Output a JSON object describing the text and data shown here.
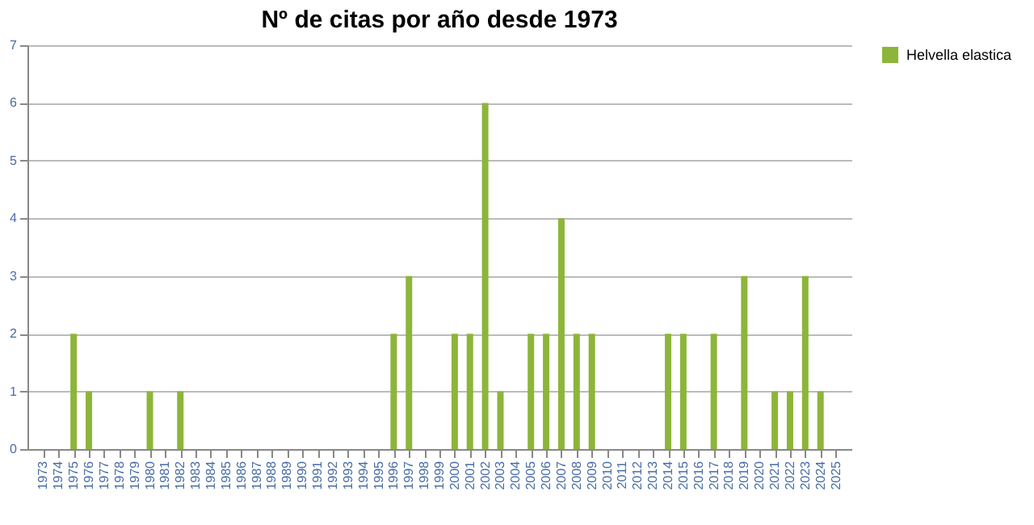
{
  "chart_data": {
    "type": "bar",
    "title": "Nº de citas por año desde 1973",
    "categories": [
      "1973",
      "1974",
      "1975",
      "1976",
      "1977",
      "1978",
      "1979",
      "1980",
      "1981",
      "1982",
      "1983",
      "1984",
      "1985",
      "1986",
      "1987",
      "1988",
      "1989",
      "1990",
      "1991",
      "1992",
      "1993",
      "1994",
      "1995",
      "1996",
      "1997",
      "1998",
      "1999",
      "2000",
      "2001",
      "2002",
      "2003",
      "2004",
      "2005",
      "2006",
      "2007",
      "2008",
      "2009",
      "2010",
      "2011",
      "2012",
      "2013",
      "2014",
      "2015",
      "2016",
      "2017",
      "2018",
      "2019",
      "2020",
      "2021",
      "2022",
      "2023",
      "2024",
      "2025"
    ],
    "series": [
      {
        "name": "Helvella elastica",
        "color": "#8db53a",
        "values": [
          0,
          0,
          2,
          1,
          0,
          0,
          0,
          1,
          0,
          1,
          0,
          0,
          0,
          0,
          0,
          0,
          0,
          0,
          0,
          0,
          0,
          0,
          0,
          2,
          3,
          0,
          0,
          2,
          2,
          6,
          1,
          0,
          2,
          2,
          4,
          2,
          2,
          0,
          0,
          0,
          0,
          2,
          2,
          0,
          2,
          0,
          3,
          0,
          1,
          1,
          3,
          1,
          0
        ]
      }
    ],
    "ylim": [
      0,
      7
    ],
    "yticks": [
      0,
      1,
      2,
      3,
      4,
      5,
      6,
      7
    ],
    "grid": "y",
    "legend": "right"
  }
}
